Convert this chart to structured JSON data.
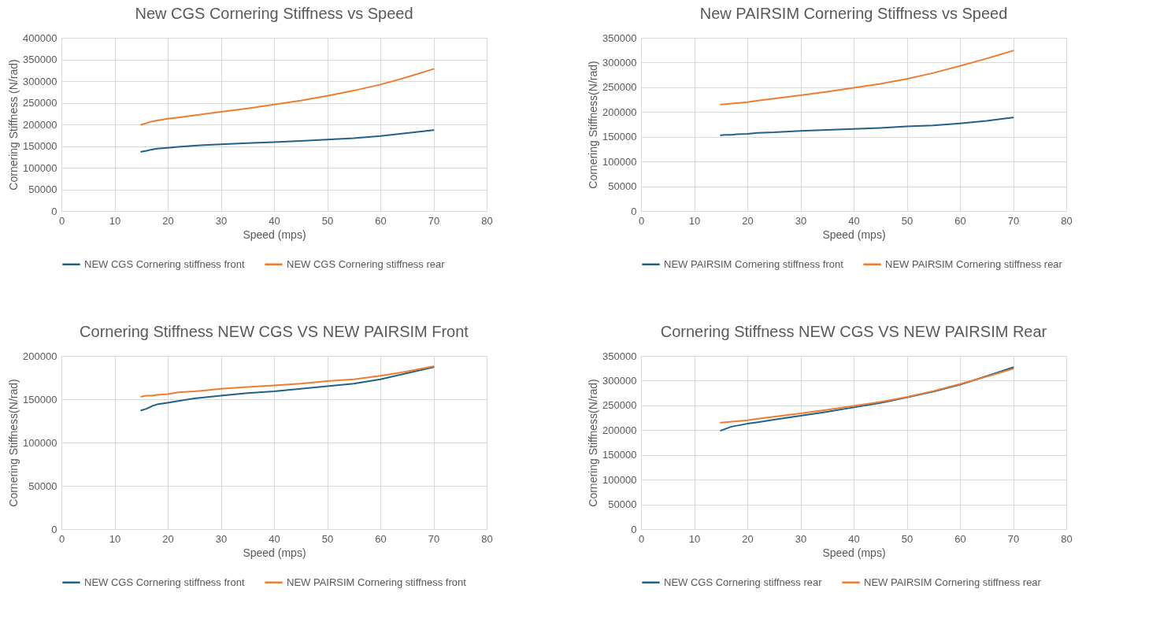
{
  "chart_data": [
    {
      "type": "line",
      "title": "New CGS Cornering Stiffness vs Speed",
      "xlabel": "Speed (mps)",
      "ylabel": "Cornering Stiffness (N/rad)",
      "x": [
        15,
        16,
        17,
        18,
        20,
        22,
        25,
        30,
        35,
        40,
        45,
        50,
        55,
        60,
        65,
        70
      ],
      "xlim": [
        0,
        80
      ],
      "xticks": [
        0,
        10,
        20,
        30,
        40,
        50,
        60,
        70,
        80
      ],
      "ylim": [
        0,
        400000
      ],
      "yticks": [
        0,
        50000,
        100000,
        150000,
        200000,
        250000,
        300000,
        350000,
        400000
      ],
      "grid": true,
      "legend": "bottom",
      "marker": "none",
      "series": [
        {
          "name": "NEW CGS Cornering stiffness front",
          "color": "#1f6289",
          "values": [
            137000,
            139000,
            142000,
            144000,
            146000,
            148000,
            151000,
            154000,
            157000,
            159000,
            162000,
            165000,
            168000,
            173000,
            180000,
            187000
          ]
        },
        {
          "name": "NEW CGS Cornering stiffness rear",
          "color": "#ed7d31",
          "values": [
            199000,
            203000,
            207000,
            209000,
            213000,
            216000,
            221000,
            229000,
            237000,
            246000,
            255000,
            266000,
            278000,
            292000,
            309000,
            328000
          ]
        }
      ]
    },
    {
      "type": "line",
      "title": "New PAIRSIM Cornering Stiffness vs Speed",
      "xlabel": "Speed (mps)",
      "ylabel": "Cornering Stiffness(N/rad)",
      "x": [
        15,
        16,
        17,
        18,
        20,
        22,
        25,
        30,
        35,
        40,
        45,
        50,
        55,
        60,
        65,
        70
      ],
      "xlim": [
        0,
        80
      ],
      "xticks": [
        0,
        10,
        20,
        30,
        40,
        50,
        60,
        70,
        80
      ],
      "ylim": [
        0,
        350000
      ],
      "yticks": [
        0,
        50000,
        100000,
        150000,
        200000,
        250000,
        300000,
        350000
      ],
      "grid": true,
      "legend": "bottom",
      "marker": "none",
      "series": [
        {
          "name": "NEW PAIRSIM Cornering stiffness front",
          "color": "#1f6289",
          "values": [
            153000,
            154000,
            154000,
            155000,
            156000,
            158000,
            159000,
            162000,
            164000,
            166000,
            168000,
            171000,
            173000,
            177000,
            182000,
            189000
          ]
        },
        {
          "name": "NEW PAIRSIM Cornering stiffness rear",
          "color": "#ed7d31",
          "values": [
            215000,
            216000,
            217000,
            218000,
            220000,
            223000,
            227000,
            234000,
            241000,
            249000,
            257000,
            267000,
            279000,
            293000,
            308000,
            324000
          ]
        }
      ]
    },
    {
      "type": "line",
      "title": "Cornering Stiffness NEW CGS VS NEW PAIRSIM Front",
      "xlabel": "Speed (mps)",
      "ylabel": "Cornering Stiffness(N/rad)",
      "x": [
        15,
        16,
        17,
        18,
        20,
        22,
        25,
        30,
        35,
        40,
        45,
        50,
        55,
        60,
        65,
        70
      ],
      "xlim": [
        0,
        80
      ],
      "xticks": [
        0,
        10,
        20,
        30,
        40,
        50,
        60,
        70,
        80
      ],
      "ylim": [
        0,
        200000
      ],
      "yticks": [
        0,
        50000,
        100000,
        150000,
        200000
      ],
      "grid": true,
      "legend": "bottom",
      "marker": "none",
      "series": [
        {
          "name": "NEW CGS Cornering stiffness front",
          "color": "#1f6289",
          "values": [
            137000,
            139000,
            142000,
            144000,
            146000,
            148000,
            151000,
            154000,
            157000,
            159000,
            162000,
            165000,
            168000,
            173000,
            180000,
            187000
          ]
        },
        {
          "name": "NEW PAIRSIM Cornering stiffness front",
          "color": "#ed7d31",
          "values": [
            153000,
            154000,
            154000,
            155000,
            156000,
            158000,
            159000,
            162000,
            164000,
            166000,
            168000,
            171000,
            173000,
            177000,
            182000,
            188000
          ]
        }
      ]
    },
    {
      "type": "line",
      "title": "Cornering Stiffness NEW CGS VS NEW PAIRSIM Rear",
      "xlabel": "Speed (mps)",
      "ylabel": "Cornering Stiffness(N/rad)",
      "x": [
        15,
        16,
        17,
        18,
        20,
        22,
        25,
        30,
        35,
        40,
        45,
        50,
        55,
        60,
        65,
        70
      ],
      "xlim": [
        0,
        80
      ],
      "xticks": [
        0,
        10,
        20,
        30,
        40,
        50,
        60,
        70,
        80
      ],
      "ylim": [
        0,
        350000
      ],
      "yticks": [
        0,
        50000,
        100000,
        150000,
        200000,
        250000,
        300000,
        350000
      ],
      "grid": true,
      "legend": "bottom",
      "marker": "none",
      "series": [
        {
          "name": "NEW CGS Cornering stiffness rear",
          "color": "#1f6289",
          "values": [
            199000,
            203000,
            207000,
            209000,
            213000,
            216000,
            221000,
            229000,
            237000,
            246000,
            255000,
            266000,
            278000,
            292000,
            309000,
            327000
          ]
        },
        {
          "name": "NEW PAIRSIM Cornering stiffness rear",
          "color": "#ed7d31",
          "values": [
            215000,
            216000,
            217000,
            218000,
            220000,
            223000,
            227000,
            234000,
            241000,
            249000,
            257000,
            267000,
            279000,
            293000,
            308000,
            324000
          ]
        }
      ]
    }
  ]
}
